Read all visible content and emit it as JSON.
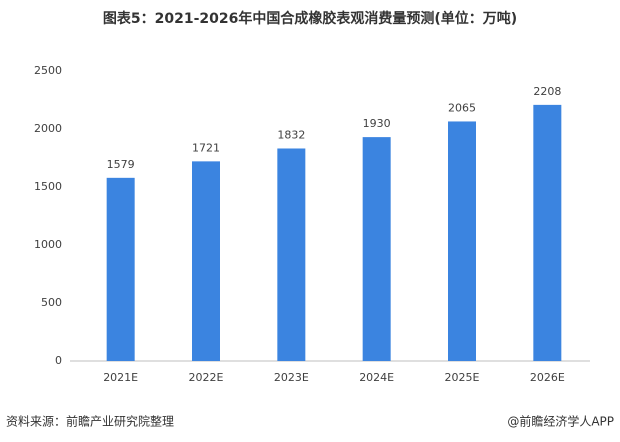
{
  "chart_data": {
    "type": "bar",
    "title": "图表5：2021-2026年中国合成橡胶表观消费量预测(单位：万吨)",
    "categories": [
      "2021E",
      "2022E",
      "2023E",
      "2024E",
      "2025E",
      "2026E"
    ],
    "values": [
      1579,
      1721,
      1832,
      1930,
      2065,
      2208
    ],
    "color": "#3b84e0",
    "ylim": [
      0,
      2500
    ],
    "yticks": [
      0,
      500,
      1000,
      1500,
      2000,
      2500
    ],
    "grid": false
  },
  "footer": {
    "source": "资料来源：前瞻产业研究院整理",
    "brand": "@前瞻经济学人APP"
  }
}
